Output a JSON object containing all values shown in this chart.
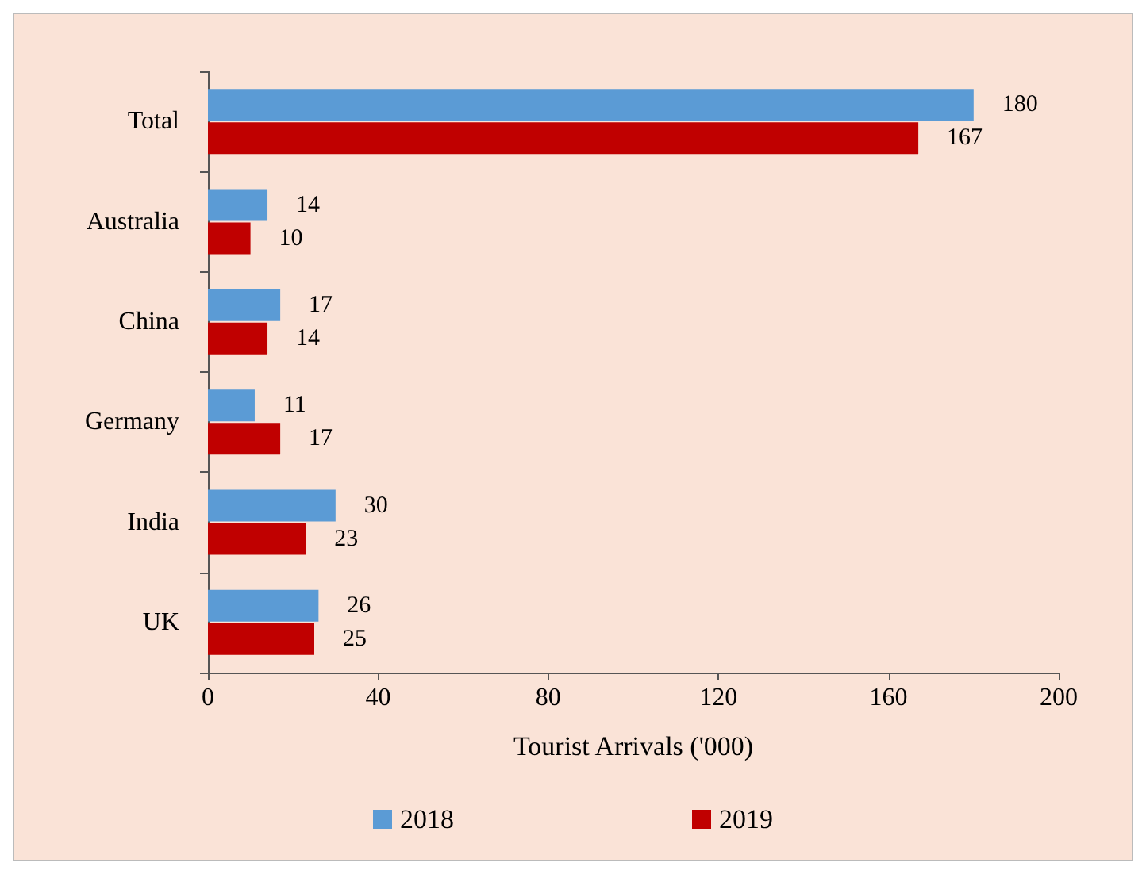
{
  "chart_data": {
    "type": "bar",
    "orientation": "horizontal",
    "xlabel": "Tourist Arrivals ('000)",
    "categories": [
      "Total",
      "Australia",
      "China",
      "Germany",
      "India",
      "UK"
    ],
    "series": [
      {
        "name": "2018",
        "color": "#5b9bd5",
        "values": [
          180,
          14,
          17,
          11,
          30,
          26
        ]
      },
      {
        "name": "2019",
        "color": "#c00000",
        "values": [
          167,
          10,
          14,
          17,
          23,
          25
        ]
      }
    ],
    "xlim": [
      0,
      200
    ],
    "xticks": [
      0,
      40,
      80,
      120,
      160,
      200
    ],
    "grid": false,
    "legend": "bottom",
    "data_labels": true
  }
}
